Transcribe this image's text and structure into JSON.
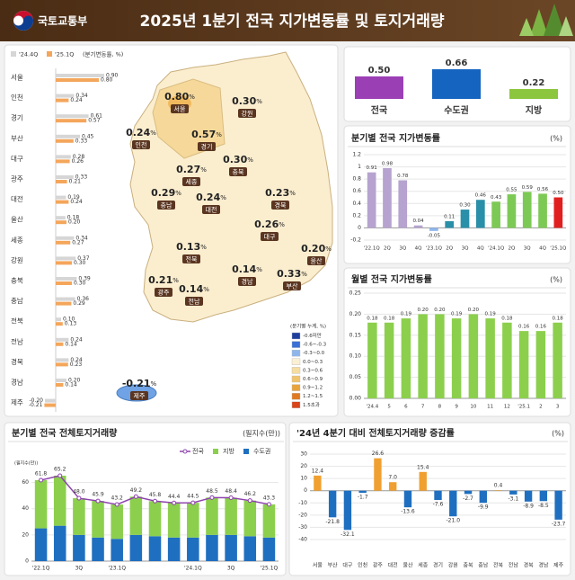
{
  "header": {
    "org": "국토교통부",
    "title": "2025년 1분기 전국 지가변동률 및 토지거래량"
  },
  "chart_data": [
    {
      "type": "hbar-grouped",
      "legend_note": "(분기변동률, %)",
      "categories": [
        "서울",
        "인천",
        "경기",
        "부산",
        "대구",
        "광주",
        "대전",
        "울산",
        "세종",
        "강원",
        "충북",
        "충남",
        "전북",
        "전남",
        "경북",
        "경남",
        "제주"
      ],
      "series": [
        {
          "name": "'24.4Q",
          "color": "#d6d6d6",
          "values": [
            0.9,
            0.34,
            0.61,
            0.45,
            0.28,
            0.33,
            0.19,
            0.18,
            0.34,
            0.37,
            0.39,
            0.36,
            0.1,
            0.24,
            0.24,
            0.2,
            -0.2
          ],
          "value_labels": [
            "0.90",
            "0.34",
            "0.61",
            "0.45",
            "0.28",
            "0.33",
            "0.19",
            "0.18",
            "0.34",
            "0.37",
            "0.39",
            "0.36",
            "0.10",
            "0.24",
            "0.24",
            "0.20",
            "-0.20"
          ]
        },
        {
          "name": "'25.1Q",
          "color": "#f4a65b",
          "values": [
            0.8,
            0.24,
            0.57,
            0.33,
            0.26,
            0.21,
            0.24,
            0.2,
            0.27,
            0.3,
            0.3,
            0.29,
            0.13,
            0.14,
            0.23,
            0.14,
            -0.21
          ],
          "value_labels": [
            "0.80",
            "0.24",
            "0.57",
            "0.33",
            "0.26",
            "0.21",
            "0.24",
            "0.20",
            "0.27",
            "0.30",
            "0.30",
            "0.29",
            "0.13",
            "0.14",
            "0.23",
            "0.14",
            "-0.21"
          ]
        }
      ]
    },
    {
      "type": "map",
      "unit": "%",
      "legend_title": "(분기별 누계, %)",
      "legend": [
        {
          "label": "-0.6미만",
          "color": "#1f3f9f"
        },
        {
          "label": "-0.6~-0.3",
          "color": "#3a6fd8"
        },
        {
          "label": "-0.3~0.0",
          "color": "#8fb6ec"
        },
        {
          "label": "0.0~0.3",
          "color": "#fbf0d4"
        },
        {
          "label": "0.3~0.6",
          "color": "#f6dda0"
        },
        {
          "label": "0.6~0.9",
          "color": "#f0c36c"
        },
        {
          "label": "0.9~1.2",
          "color": "#e8a33d"
        },
        {
          "label": "1.2~1.5",
          "color": "#e07a22"
        },
        {
          "label": "1.5초과",
          "color": "#d9441a"
        }
      ]
    },
    {
      "type": "bar",
      "categories": [
        "전국",
        "수도권",
        "지방"
      ],
      "values": [
        0.5,
        0.66,
        0.22
      ],
      "value_labels": [
        "0.50",
        "0.66",
        "0.22"
      ],
      "colors": [
        "#9b3fb5",
        "#1565c0",
        "#8cc63f"
      ]
    },
    {
      "type": "bar",
      "title": "분기별 전국 지가변동률",
      "unit_label": "(%)",
      "categories": [
        "'22.1Q",
        "2Q",
        "3Q",
        "4Q",
        "'23.1Q",
        "2Q",
        "3Q",
        "4Q",
        "'24.1Q",
        "2Q",
        "3Q",
        "4Q",
        "'25.1Q"
      ],
      "values": [
        0.91,
        0.98,
        0.78,
        0.04,
        -0.05,
        0.11,
        0.3,
        0.46,
        0.43,
        0.55,
        0.59,
        0.56,
        0.5
      ],
      "value_labels": [
        "0.91",
        "0.98",
        "0.78",
        "0.04",
        "-0.05",
        "0.11",
        "0.30",
        "0.46",
        "0.43",
        "0.55",
        "0.59",
        "0.56",
        "0.50"
      ],
      "colors": [
        "#b6a3cf",
        "#b6a3cf",
        "#b6a3cf",
        "#b6a3cf",
        "#8fb6ec",
        "#2a8fa8",
        "#2a8fa8",
        "#2a8fa8",
        "#7dc955",
        "#7dc955",
        "#7dc955",
        "#7dc955",
        "#e02020"
      ],
      "ylim": [
        -0.2,
        1.2
      ],
      "yticks": [
        -0.2,
        0,
        0.2,
        0.4,
        0.6,
        0.8,
        1,
        1.2
      ]
    },
    {
      "type": "bar",
      "title": "월별 전국 지가변동률",
      "unit_label": "(%)",
      "categories": [
        "'24.4",
        "5",
        "6",
        "7",
        "8",
        "9",
        "10",
        "11",
        "12",
        "'25.1",
        "2",
        "3"
      ],
      "values": [
        0.18,
        0.18,
        0.19,
        0.2,
        0.2,
        0.19,
        0.2,
        0.19,
        0.18,
        0.16,
        0.16,
        0.18
      ],
      "value_labels": [
        "0.18",
        "0.18",
        "0.19",
        "0.20",
        "0.20",
        "0.19",
        "0.20",
        "0.19",
        "0.18",
        "0.16",
        "0.16",
        "0.18"
      ],
      "color": "#8ccf4d",
      "ylim": [
        0,
        0.25
      ],
      "yticks": [
        {
          "value": 0,
          "label": "0.00"
        },
        {
          "value": 0.05,
          "label": "0.05"
        },
        {
          "value": 0.1,
          "label": "0.10"
        },
        {
          "value": 0.15,
          "label": "0.15"
        },
        {
          "value": 0.2,
          "label": "0.20"
        },
        {
          "value": 0.25,
          "label": "0.25"
        }
      ]
    },
    {
      "type": "stacked-bar-line",
      "title": "분기별 전국 전체토지거래량",
      "unit_label": "(필지수(만))",
      "axis_label": "(필지수(만))",
      "categories": [
        "'22.1Q",
        null,
        "3Q",
        null,
        "'23.1Q",
        null,
        null,
        null,
        "'24.1Q",
        null,
        "3Q",
        null,
        "'25.1Q"
      ],
      "series": [
        {
          "name": "전국",
          "kind": "line",
          "color": "#8e44ad",
          "values": [
            61.8,
            65.2,
            48.0,
            45.9,
            43.2,
            49.2,
            45.8,
            44.4,
            44.5,
            48.5,
            48.4,
            46.2,
            43.3
          ],
          "value_labels": [
            "61.8",
            "65.2",
            "48.0",
            "45.9",
            "43.2",
            "49.2",
            "45.8",
            "44.4",
            "44.5",
            "48.5",
            "48.4",
            "46.2",
            "43.3"
          ]
        },
        {
          "name": "지방",
          "kind": "bar",
          "color": "#8ccf4d",
          "values": [
            36.8,
            38.2,
            28.0,
            27.9,
            26.2,
            29.2,
            26.8,
            26.4,
            26.5,
            28.5,
            28.4,
            27.2,
            25.3
          ]
        },
        {
          "name": "수도권",
          "kind": "bar",
          "color": "#1f6fc0",
          "values": [
            25,
            27,
            20,
            18,
            17,
            20,
            19,
            18,
            18,
            20,
            20,
            19,
            18
          ]
        }
      ],
      "ylim": [
        0,
        70
      ],
      "yticks": [
        0,
        20,
        40,
        60
      ]
    },
    {
      "type": "diverging-bar",
      "title": "'24년 4분기 대비 전체토지거래량 증감률",
      "unit_label": "(%)",
      "categories": [
        "서울",
        "부산",
        "대구",
        "인천",
        "광주",
        "대전",
        "울산",
        "세종",
        "경기",
        "강원",
        "충북",
        "충남",
        "전북",
        "전남",
        "경북",
        "경남",
        "제주"
      ],
      "values": [
        12.4,
        -21.8,
        -32.1,
        -1.7,
        26.6,
        7.0,
        -13.6,
        15.4,
        -7.6,
        -21.0,
        -2.7,
        -9.9,
        0.4,
        -3.1,
        -8.9,
        -8.5,
        -23.7
      ],
      "value_labels": [
        "12.4",
        "-21.8",
        "-32.1",
        "-1.7",
        "26.6",
        "7.0",
        "-13.6",
        "15.4",
        "-7.6",
        "-21.0",
        "-2.7",
        "-9.9",
        "0.4",
        "-3.1",
        "-8.9",
        "-8.5",
        "-23.7"
      ],
      "positive_color": "#f0a030",
      "negative_color": "#1f6fc0",
      "ylim": [
        -40,
        30
      ],
      "yticks": [
        -40,
        -30,
        -20,
        -10,
        0,
        10,
        20,
        30
      ]
    }
  ]
}
